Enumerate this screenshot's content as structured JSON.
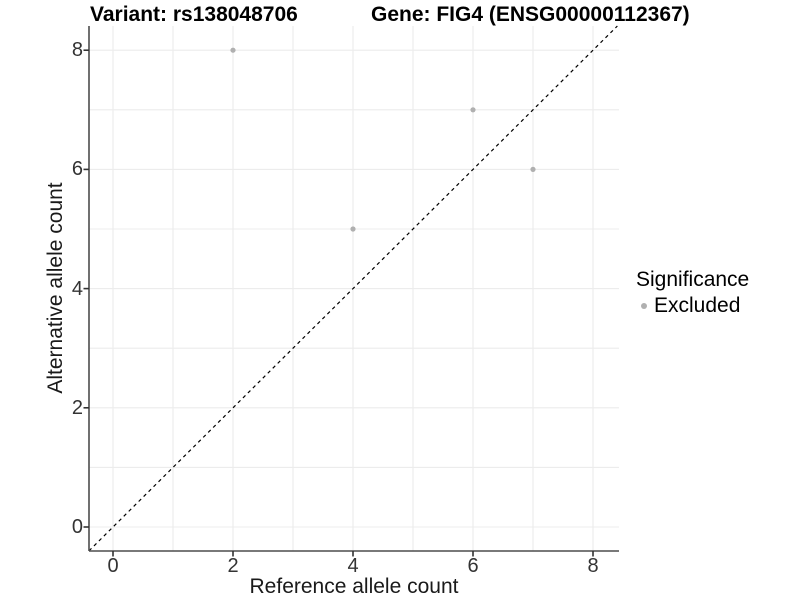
{
  "figure": {
    "title_left": "Variant: rs138048706",
    "title_right": "Gene: FIG4 (ENSG00000112367)"
  },
  "axes": {
    "x": {
      "label": "Reference allele count",
      "tick_values": [
        0,
        2,
        4,
        6,
        8
      ]
    },
    "y": {
      "label": "Alternative allele count",
      "tick_values": [
        0,
        2,
        4,
        6,
        8
      ]
    }
  },
  "legend": {
    "title": "Significance",
    "items": [
      {
        "label": "Excluded",
        "color": "#b0b0b0",
        "marker": "circle-icon"
      }
    ]
  },
  "chart_data": {
    "type": "scatter",
    "title": "Variant: rs138048706 — Gene: FIG4 (ENSG00000112367)",
    "xlabel": "Reference allele count",
    "ylabel": "Alternative allele count",
    "xlim": [
      -0.4,
      8.4
    ],
    "ylim": [
      -0.4,
      8.4
    ],
    "x_ticks": [
      0,
      2,
      4,
      6,
      8
    ],
    "y_ticks": [
      0,
      2,
      4,
      6,
      8
    ],
    "grid": "on",
    "minor_grid": "on",
    "legend_position": "right-middle",
    "series": [
      {
        "name": "Excluded",
        "color": "#b0b0b0",
        "points": [
          [
            2,
            8
          ],
          [
            4,
            5
          ],
          [
            6,
            7
          ],
          [
            7,
            6
          ]
        ]
      }
    ],
    "reference_line": {
      "kind": "y=x",
      "style": "dashed",
      "color": "#000000"
    }
  },
  "colors": {
    "background": "#ffffff",
    "grid": "#ececec",
    "axis": "#4d4d4d",
    "tick": "#333333",
    "tick_text": "#333333",
    "point": "#b0b0b0",
    "reference_line": "#000000",
    "title_text": "#000000"
  }
}
